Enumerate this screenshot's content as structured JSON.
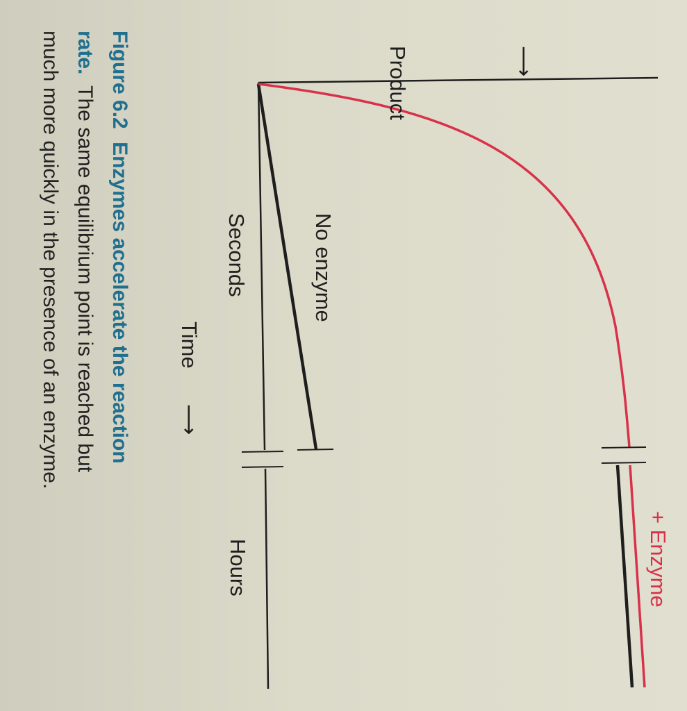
{
  "figure": {
    "caption": {
      "number": "Figure 6.2",
      "title": "Enzymes accelerate the reaction rate.",
      "title_line1": "Enzymes accelerate the reaction",
      "title_line2": "rate.",
      "body_line2": "The same equilibrium point is reached but",
      "body_line3": "much more quickly in the presence of an enzyme."
    }
  },
  "colors": {
    "enzyme_curve": "#d8324a",
    "no_enzyme_line": "#1e1e1e",
    "caption_accent": "#1f6f8f"
  },
  "chart_data": {
    "type": "line",
    "orientation": "rotated 90° clockwise (time runs downward, product increases to the right)",
    "xlabel": "Time →",
    "ylabel": "Product →",
    "x_tick_labels": [
      "Seconds",
      "Hours"
    ],
    "axis_break": true,
    "series": [
      {
        "name": "+ Enzyme",
        "shape": "rapid rise to equilibrium within seconds, then flat",
        "y_seconds_fraction_of_equilibrium": 1.0,
        "y_hours_fraction_of_equilibrium": 1.0
      },
      {
        "name": "No enzyme",
        "shape": "slow linear rise, reaching equilibrium only after hours",
        "y_seconds_fraction_of_equilibrium": 0.13,
        "y_hours_fraction_of_equilibrium": 1.0
      }
    ],
    "annotations": {
      "product": "Product",
      "time": "Time",
      "seconds": "Seconds",
      "hours": "Hours",
      "no_enzyme": "No enzyme",
      "enzyme": "+ Enzyme"
    }
  }
}
